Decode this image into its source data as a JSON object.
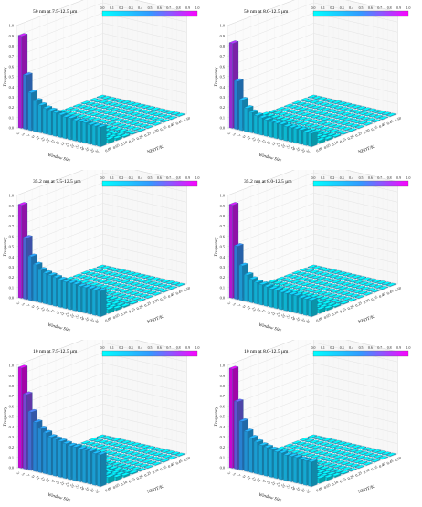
{
  "figure": {
    "panels": [
      {
        "label": "50 nm at 7.5-12.5 μm"
      },
      {
        "label": "50 nm at 8.0-12.5 μm"
      },
      {
        "label": "35.2 nm at 7.5-12.5 μm"
      },
      {
        "label": "35.2 nm at 8.0-12.5 μm"
      },
      {
        "label": "10 nm at 7.5-12.5 μm"
      },
      {
        "label": "10 nm at 8.0-12.5 μm"
      }
    ],
    "colorbar_ticks": [
      "0.0",
      "0.1",
      "0.2",
      "0.3",
      "0.4",
      "0.5",
      "0.6",
      "0.7",
      "0.8",
      "0.9",
      "1.0"
    ],
    "colors": {
      "low": "#00ffff",
      "high": "#ff00ff",
      "mid": "#3399ff",
      "edge": "#1f5f8f"
    }
  },
  "chart_data": [
    {
      "type": "bar3d",
      "title": "50 nm at 7.5-12.5 μm",
      "xlabel": "Window Size",
      "ylabel": "NEDT/K",
      "zlabel": "Frequency",
      "x_ticks": [
        "3",
        "5",
        "7",
        "9",
        "11",
        "13",
        "15",
        "17",
        "19",
        "21",
        "23",
        "25",
        "27",
        "29",
        "31",
        "33",
        "35"
      ],
      "y_ticks": [
        "0.00",
        "0.05",
        "0.10",
        "0.15",
        "0.20",
        "0.25",
        "0.30",
        "0.35",
        "0.40",
        "0.45",
        "0.50"
      ],
      "z_ticks": [
        "0.0",
        "0.1",
        "0.2",
        "0.3",
        "0.4",
        "0.5",
        "0.6",
        "0.7",
        "0.8",
        "0.9",
        "1.0"
      ],
      "zlim": [
        0,
        1
      ],
      "series": [
        {
          "nedt": "0.00",
          "values": [
            0.9,
            0.53,
            0.37,
            0.3,
            0.27,
            0.25,
            0.24,
            0.23,
            0.22,
            0.21,
            0.21,
            0.2,
            0.2,
            0.2,
            0.19,
            0.19,
            0.19
          ]
        },
        {
          "nedt": "0.05",
          "values": [
            0.1,
            0.07,
            0.06,
            0.05,
            0.05,
            0.04,
            0.04,
            0.04,
            0.04,
            0.04,
            0.04,
            0.04,
            0.04,
            0.04,
            0.04,
            0.04,
            0.04
          ]
        }
      ]
    },
    {
      "type": "bar3d",
      "title": "50 nm at 8.0-12.5 μm",
      "xlabel": "Window Size",
      "ylabel": "NEDT/K",
      "zlabel": "Frequency",
      "x_ticks": [
        "3",
        "5",
        "7",
        "9",
        "11",
        "13",
        "15",
        "17",
        "19",
        "21",
        "23",
        "25",
        "27",
        "29",
        "31",
        "33",
        "35"
      ],
      "y_ticks": [
        "0.00",
        "0.05",
        "0.10",
        "0.15",
        "0.20",
        "0.25",
        "0.30",
        "0.35",
        "0.40",
        "0.45",
        "0.50"
      ],
      "z_ticks": [
        "0.0",
        "0.1",
        "0.2",
        "0.3",
        "0.4",
        "0.5",
        "0.6",
        "0.7",
        "0.8",
        "0.9",
        "1.0"
      ],
      "zlim": [
        0,
        1
      ],
      "series": [
        {
          "nedt": "0.00",
          "values": [
            0.83,
            0.47,
            0.3,
            0.23,
            0.2,
            0.18,
            0.17,
            0.16,
            0.15,
            0.15,
            0.15,
            0.14,
            0.14,
            0.14,
            0.14,
            0.13,
            0.13
          ]
        },
        {
          "nedt": "0.05",
          "values": [
            0.08,
            0.06,
            0.05,
            0.04,
            0.04,
            0.04,
            0.04,
            0.03,
            0.03,
            0.03,
            0.03,
            0.03,
            0.03,
            0.03,
            0.03,
            0.03,
            0.03
          ]
        }
      ]
    },
    {
      "type": "bar3d",
      "title": "35.2 nm at 7.5-12.5 μm",
      "xlabel": "Window Size",
      "ylabel": "NEDT/K",
      "zlabel": "Frequency",
      "x_ticks": [
        "3",
        "5",
        "7",
        "9",
        "11",
        "13",
        "15",
        "17",
        "19",
        "21",
        "23",
        "25",
        "27",
        "29",
        "31",
        "33",
        "35"
      ],
      "y_ticks": [
        "0.00",
        "0.05",
        "0.10",
        "0.15",
        "0.20",
        "0.25",
        "0.30",
        "0.35",
        "0.40",
        "0.45",
        "0.50"
      ],
      "z_ticks": [
        "0.0",
        "0.1",
        "0.2",
        "0.3",
        "0.4",
        "0.5",
        "0.6",
        "0.7",
        "0.8",
        "0.9",
        "1.0"
      ],
      "zlim": [
        0,
        1
      ],
      "series": [
        {
          "nedt": "0.00",
          "values": [
            0.91,
            0.6,
            0.43,
            0.36,
            0.32,
            0.3,
            0.29,
            0.28,
            0.27,
            0.26,
            0.26,
            0.26,
            0.25,
            0.25,
            0.25,
            0.25,
            0.25
          ]
        },
        {
          "nedt": "0.05",
          "values": [
            0.12,
            0.09,
            0.07,
            0.06,
            0.05,
            0.05,
            0.05,
            0.05,
            0.05,
            0.05,
            0.05,
            0.05,
            0.05,
            0.04,
            0.04,
            0.04,
            0.04
          ]
        }
      ]
    },
    {
      "type": "bar3d",
      "title": "35.2 nm at 8.0-12.5 μm",
      "xlabel": "Window Size",
      "ylabel": "NEDT/K",
      "zlabel": "Frequency",
      "x_ticks": [
        "3",
        "5",
        "7",
        "9",
        "11",
        "13",
        "15",
        "17",
        "19",
        "21",
        "23",
        "25",
        "27",
        "29",
        "31",
        "33",
        "35"
      ],
      "y_ticks": [
        "0.00",
        "0.05",
        "0.10",
        "0.15",
        "0.20",
        "0.25",
        "0.30",
        "0.35",
        "0.40",
        "0.45",
        "0.50"
      ],
      "z_ticks": [
        "0.0",
        "0.1",
        "0.2",
        "0.3",
        "0.4",
        "0.5",
        "0.6",
        "0.7",
        "0.8",
        "0.9",
        "1.0"
      ],
      "zlim": [
        0,
        1
      ],
      "series": [
        {
          "nedt": "0.00",
          "values": [
            0.91,
            0.52,
            0.34,
            0.26,
            0.23,
            0.21,
            0.2,
            0.19,
            0.18,
            0.18,
            0.17,
            0.17,
            0.17,
            0.17,
            0.16,
            0.16,
            0.16
          ]
        },
        {
          "nedt": "0.05",
          "values": [
            0.1,
            0.07,
            0.06,
            0.05,
            0.04,
            0.04,
            0.04,
            0.04,
            0.04,
            0.04,
            0.04,
            0.04,
            0.04,
            0.04,
            0.04,
            0.04,
            0.04
          ]
        }
      ]
    },
    {
      "type": "bar3d",
      "title": "10 nm at 7.5-12.5 μm",
      "xlabel": "Window Size",
      "ylabel": "NEDT/K",
      "zlabel": "Frequency",
      "x_ticks": [
        "3",
        "5",
        "7",
        "9",
        "11",
        "13",
        "15",
        "17",
        "19",
        "21",
        "23",
        "25",
        "27",
        "29",
        "31",
        "33",
        "35"
      ],
      "y_ticks": [
        "0.00",
        "0.05",
        "0.10",
        "0.15",
        "0.20",
        "0.25",
        "0.30",
        "0.35",
        "0.40",
        "0.45",
        "0.50"
      ],
      "z_ticks": [
        "0.0",
        "0.1",
        "0.2",
        "0.3",
        "0.4",
        "0.5",
        "0.6",
        "0.7",
        "0.8",
        "0.9",
        "1.0"
      ],
      "zlim": [
        0,
        1
      ],
      "series": [
        {
          "nedt": "0.00",
          "values": [
            0.98,
            0.73,
            0.57,
            0.48,
            0.43,
            0.4,
            0.37,
            0.36,
            0.35,
            0.34,
            0.33,
            0.33,
            0.32,
            0.32,
            0.32,
            0.31,
            0.31
          ]
        },
        {
          "nedt": "0.05",
          "values": [
            0.15,
            0.12,
            0.1,
            0.09,
            0.08,
            0.08,
            0.07,
            0.07,
            0.07,
            0.07,
            0.07,
            0.06,
            0.06,
            0.06,
            0.06,
            0.06,
            0.06
          ]
        }
      ]
    },
    {
      "type": "bar3d",
      "title": "10 nm at 8.0-12.5 μm",
      "xlabel": "Window Size",
      "ylabel": "NEDT/K",
      "zlabel": "Frequency",
      "x_ticks": [
        "3",
        "5",
        "7",
        "9",
        "11",
        "13",
        "15",
        "17",
        "19",
        "21",
        "23",
        "25",
        "27",
        "29",
        "31",
        "33",
        "35"
      ],
      "y_ticks": [
        "0.00",
        "0.05",
        "0.10",
        "0.15",
        "0.20",
        "0.25",
        "0.30",
        "0.35",
        "0.40",
        "0.45",
        "0.50"
      ],
      "z_ticks": [
        "0.0",
        "0.1",
        "0.2",
        "0.3",
        "0.4",
        "0.5",
        "0.6",
        "0.7",
        "0.8",
        "0.9",
        "1.0"
      ],
      "zlim": [
        0,
        1
      ],
      "series": [
        {
          "nedt": "0.00",
          "values": [
            0.97,
            0.66,
            0.48,
            0.39,
            0.34,
            0.31,
            0.29,
            0.28,
            0.27,
            0.26,
            0.26,
            0.25,
            0.25,
            0.25,
            0.24,
            0.24,
            0.24
          ]
        },
        {
          "nedt": "0.05",
          "values": [
            0.13,
            0.1,
            0.08,
            0.07,
            0.06,
            0.06,
            0.06,
            0.06,
            0.05,
            0.05,
            0.05,
            0.05,
            0.05,
            0.05,
            0.05,
            0.05,
            0.05
          ]
        }
      ]
    }
  ]
}
